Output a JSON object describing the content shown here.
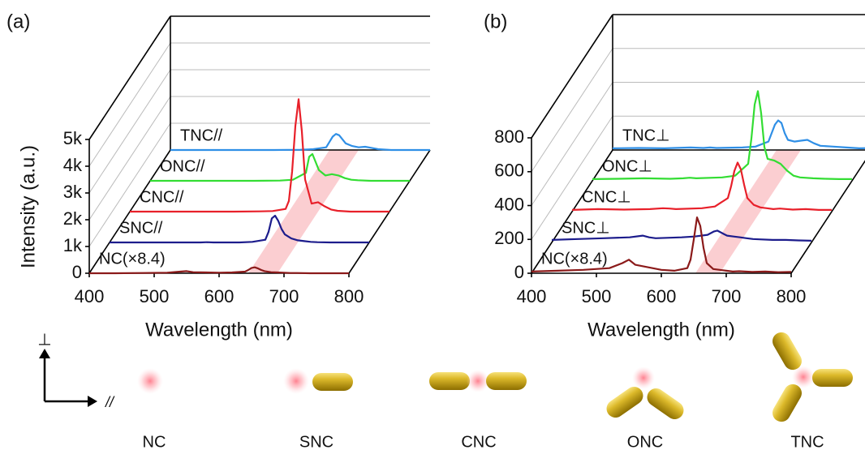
{
  "chart_data": [
    {
      "type": "line",
      "panel_label": "(a)",
      "ylabel": "Intensity (a.u.)",
      "xlabel": "Wavelength (nm)",
      "x": [
        400,
        440,
        480,
        520,
        540,
        550,
        560,
        600,
        620,
        640,
        645,
        650,
        655,
        660,
        665,
        670,
        680,
        690,
        700,
        710,
        720,
        740,
        760,
        780,
        800
      ],
      "xlim": [
        400,
        800
      ],
      "xticks": [
        400,
        500,
        600,
        700,
        800
      ],
      "ylim": [
        0,
        5000
      ],
      "yticks": [
        0,
        {
          "value": 1000,
          "label": "1k"
        },
        {
          "value": 2000,
          "label": "2k"
        },
        {
          "value": 3000,
          "label": "3k"
        },
        {
          "value": 4000,
          "label": "4k"
        },
        {
          "value": 5000,
          "label": "5k"
        }
      ],
      "series": [
        {
          "name": "NC(×8.4)",
          "color": "#8b1a1a",
          "values": [
            0,
            0,
            10,
            20,
            60,
            80,
            40,
            20,
            30,
            60,
            120,
            200,
            220,
            180,
            120,
            80,
            40,
            30,
            20,
            10,
            10,
            0,
            0,
            0,
            0
          ]
        },
        {
          "name": "SNC//",
          "color": "#1c1c8c",
          "values": [
            0,
            0,
            0,
            0,
            0,
            10,
            0,
            0,
            20,
            100,
            400,
            900,
            1000,
            800,
            500,
            300,
            150,
            80,
            50,
            20,
            10,
            0,
            0,
            0,
            0
          ]
        },
        {
          "name": "CNC//",
          "color": "#e8202a",
          "values": [
            0,
            0,
            0,
            0,
            0,
            0,
            0,
            10,
            20,
            100,
            400,
            1500,
            3200,
            4200,
            3000,
            1200,
            300,
            350,
            200,
            80,
            30,
            0,
            0,
            0,
            0
          ]
        },
        {
          "name": "ONC//",
          "color": "#33dd33",
          "values": [
            0,
            0,
            0,
            0,
            0,
            0,
            0,
            10,
            40,
            300,
            900,
            1000,
            700,
            400,
            300,
            200,
            250,
            200,
            100,
            40,
            20,
            0,
            0,
            0,
            0
          ]
        },
        {
          "name": "TNC//",
          "color": "#2f8fe6",
          "values": [
            0,
            0,
            0,
            0,
            0,
            0,
            0,
            10,
            30,
            100,
            300,
            500,
            600,
            550,
            400,
            250,
            150,
            100,
            120,
            80,
            30,
            0,
            0,
            0,
            0
          ]
        }
      ]
    },
    {
      "type": "line",
      "panel_label": "(b)",
      "xlabel": "Wavelength (nm)",
      "x": [
        400,
        440,
        480,
        520,
        540,
        550,
        560,
        600,
        620,
        640,
        645,
        650,
        655,
        660,
        665,
        670,
        680,
        690,
        700,
        710,
        720,
        740,
        760,
        780,
        800
      ],
      "xlim": [
        400,
        800
      ],
      "xticks": [
        400,
        500,
        600,
        700,
        800
      ],
      "ylim": [
        0,
        800
      ],
      "yticks": [
        0,
        200,
        400,
        600,
        800
      ],
      "series": [
        {
          "name": "NC(×8.4)",
          "color": "#8b1a1a",
          "values": [
            10,
            15,
            20,
            30,
            60,
            80,
            50,
            20,
            15,
            30,
            80,
            200,
            330,
            280,
            150,
            60,
            25,
            20,
            15,
            10,
            12,
            8,
            10,
            6,
            8
          ]
        },
        {
          "name": "SNC⊥",
          "color": "#1c1c8c",
          "values": [
            15,
            20,
            25,
            30,
            40,
            30,
            25,
            30,
            35,
            45,
            55,
            65,
            70,
            60,
            50,
            40,
            35,
            30,
            25,
            20,
            18,
            15,
            15,
            12,
            10
          ]
        },
        {
          "name": "CNC⊥",
          "color": "#e8202a",
          "values": [
            10,
            15,
            12,
            15,
            20,
            18,
            15,
            20,
            30,
            80,
            150,
            240,
            290,
            250,
            160,
            80,
            40,
            25,
            20,
            15,
            18,
            12,
            15,
            10,
            10
          ]
        },
        {
          "name": "ONC⊥",
          "color": "#33dd33",
          "values": [
            10,
            12,
            15,
            12,
            15,
            18,
            15,
            20,
            30,
            100,
            250,
            450,
            530,
            400,
            200,
            130,
            120,
            100,
            60,
            30,
            20,
            15,
            12,
            10,
            10
          ]
        },
        {
          "name": "TNC⊥",
          "color": "#2f8fe6",
          "values": [
            10,
            12,
            10,
            15,
            12,
            15,
            12,
            15,
            20,
            50,
            100,
            150,
            175,
            160,
            100,
            60,
            50,
            55,
            60,
            40,
            25,
            20,
            15,
            10,
            12
          ]
        }
      ]
    }
  ],
  "illustration": {
    "perpendicular": "⊥",
    "parallel": "//",
    "labels": [
      "NC",
      "SNC",
      "CNC",
      "ONC",
      "TNC"
    ]
  }
}
